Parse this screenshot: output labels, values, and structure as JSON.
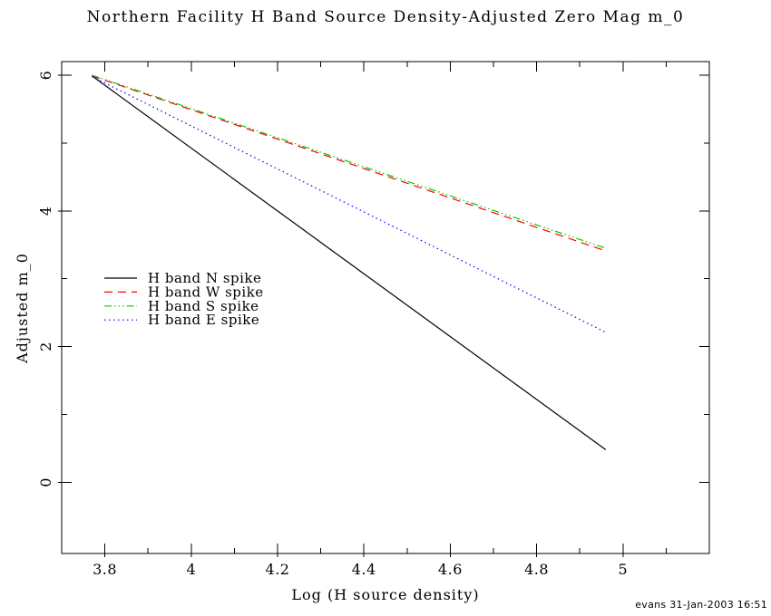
{
  "chart_data": {
    "type": "line",
    "title": "Northern Facility H Band Source Density-Adjusted Zero Mag m_0",
    "xlabel": "Log (H source density)",
    "ylabel": "Adjusted m_0",
    "xlim": [
      3.7,
      5.2
    ],
    "ylim": [
      -1.05,
      6.2
    ],
    "x_major_ticks": [
      3.8,
      4.0,
      4.2,
      4.4,
      4.6,
      4.8,
      5.0
    ],
    "x_tick_labels": [
      "3.8",
      "4",
      "4.2",
      "4.4",
      "4.6",
      "4.8",
      "5"
    ],
    "x_minor_ticks": [
      3.9,
      4.1,
      4.3,
      4.5,
      4.7,
      4.9,
      5.1
    ],
    "y_major_ticks": [
      0,
      2,
      4,
      6
    ],
    "y_tick_labels": [
      "0",
      "2",
      "4",
      "6"
    ],
    "y_minor_ticks": [
      1,
      3,
      5
    ],
    "grid": false,
    "legend_position": "inside-left",
    "series": [
      {
        "name": "H band N spike",
        "color": "#000000",
        "style": "solid",
        "x": [
          3.77,
          4.96
        ],
        "y": [
          5.99,
          0.48
        ]
      },
      {
        "name": "H band W spike",
        "color": "#ff0000",
        "style": "dashed",
        "x": [
          3.77,
          4.96
        ],
        "y": [
          5.99,
          3.41
        ]
      },
      {
        "name": "H band S spike",
        "color": "#00cc00",
        "style": "dash-dot-dot",
        "x": [
          3.77,
          4.96
        ],
        "y": [
          6.0,
          3.45
        ]
      },
      {
        "name": "H band E spike",
        "color": "#0000ff",
        "style": "dotted",
        "x": [
          3.77,
          4.96
        ],
        "y": [
          5.98,
          2.21
        ]
      }
    ],
    "annotation": "evans 31-Jan-2003 16:51"
  }
}
